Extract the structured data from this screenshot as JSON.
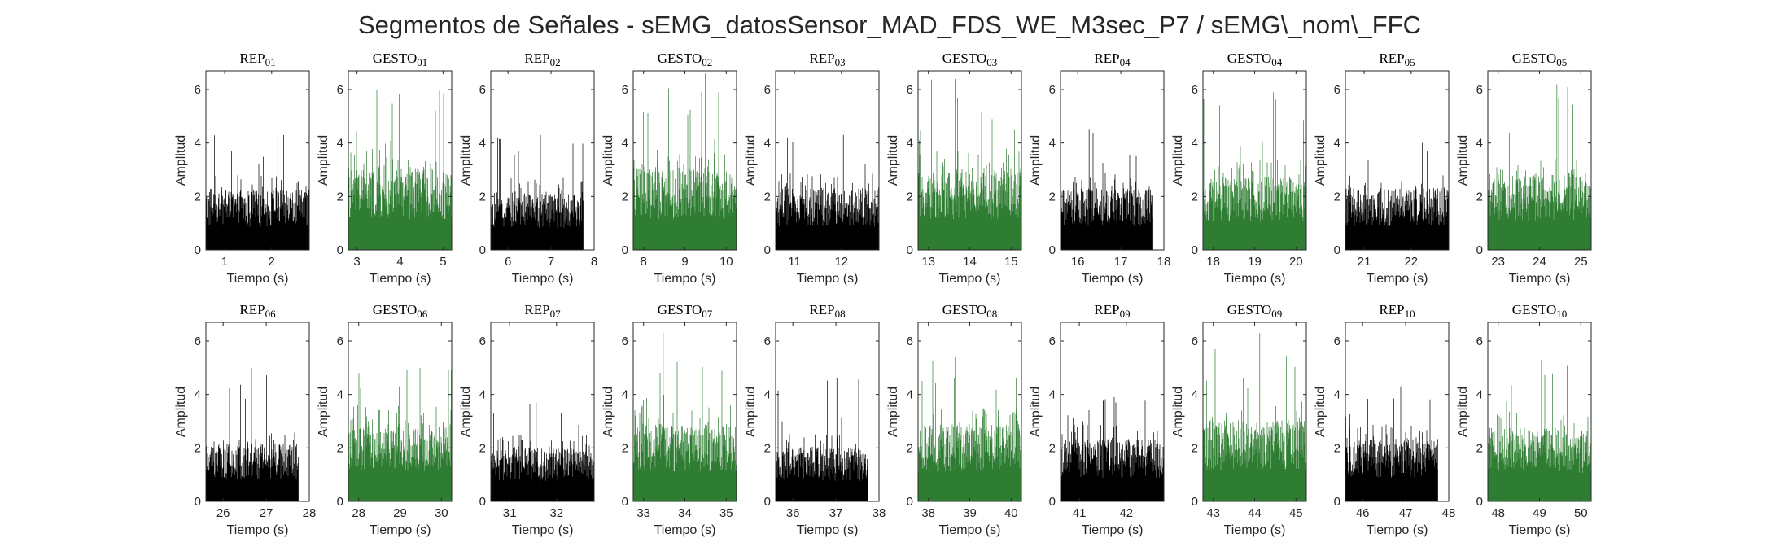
{
  "figure": {
    "title": "Segmentos de Señales - sEMG_datosSensor_MAD_FDS_WE_M3sec_P7 / sEMG\\_nom\\_FFC",
    "colors": {
      "rep": "#000000",
      "gesto": "#2e7d32",
      "axis": "#262626",
      "background": "#ffffff"
    }
  },
  "chart_data": [
    {
      "type": "bar",
      "title": "REP_01",
      "xlabel": "Tiempo (s)",
      "ylabel": "Amplitud",
      "xlim": [
        0.6,
        2.8
      ],
      "ylim": [
        0,
        6.7
      ],
      "xticks": [
        1,
        2
      ],
      "yticks": [
        0,
        2,
        4,
        6
      ],
      "signal_range": [
        0.6,
        2.8
      ],
      "series": [
        {
          "kind": "rep",
          "color": "#000000",
          "mean": 1.55,
          "max": 4.3
        }
      ]
    },
    {
      "type": "bar",
      "title": "GESTO_01",
      "xlabel": "Tiempo (s)",
      "ylabel": "Amplitud",
      "xlim": [
        2.8,
        5.2
      ],
      "ylim": [
        0,
        6.7
      ],
      "xticks": [
        3,
        4,
        5
      ],
      "yticks": [
        0,
        2,
        4,
        6
      ],
      "signal_range": [
        2.8,
        5.2
      ],
      "series": [
        {
          "kind": "gesto",
          "color": "#2e7d32",
          "mean": 2.1,
          "max": 6.0
        }
      ]
    },
    {
      "type": "bar",
      "title": "REP_02",
      "xlabel": "Tiempo (s)",
      "ylabel": "Amplitud",
      "xlim": [
        5.6,
        8.0
      ],
      "ylim": [
        0,
        6.7
      ],
      "xticks": [
        6,
        7,
        8
      ],
      "yticks": [
        0,
        2,
        4,
        6
      ],
      "signal_range": [
        5.6,
        7.75
      ],
      "series": [
        {
          "kind": "rep",
          "color": "#000000",
          "mean": 1.5,
          "max": 4.3
        }
      ]
    },
    {
      "type": "bar",
      "title": "GESTO_02",
      "xlabel": "Tiempo (s)",
      "ylabel": "Amplitud",
      "xlim": [
        7.75,
        10.25
      ],
      "ylim": [
        0,
        6.7
      ],
      "xticks": [
        8,
        9,
        10
      ],
      "yticks": [
        0,
        2,
        4,
        6
      ],
      "signal_range": [
        7.75,
        10.25
      ],
      "series": [
        {
          "kind": "gesto",
          "color": "#2e7d32",
          "mean": 2.1,
          "max": 6.6
        }
      ]
    },
    {
      "type": "bar",
      "title": "REP_03",
      "xlabel": "Tiempo (s)",
      "ylabel": "Amplitud",
      "xlim": [
        10.6,
        12.8
      ],
      "ylim": [
        0,
        6.7
      ],
      "xticks": [
        11,
        12
      ],
      "yticks": [
        0,
        2,
        4,
        6
      ],
      "signal_range": [
        10.6,
        12.8
      ],
      "series": [
        {
          "kind": "rep",
          "color": "#000000",
          "mean": 1.6,
          "max": 4.3
        }
      ]
    },
    {
      "type": "bar",
      "title": "GESTO_03",
      "xlabel": "Tiempo (s)",
      "ylabel": "Amplitud",
      "xlim": [
        12.75,
        15.25
      ],
      "ylim": [
        0,
        6.7
      ],
      "xticks": [
        13,
        14,
        15
      ],
      "yticks": [
        0,
        2,
        4,
        6
      ],
      "signal_range": [
        12.75,
        15.25
      ],
      "series": [
        {
          "kind": "gesto",
          "color": "#2e7d32",
          "mean": 2.1,
          "max": 6.4
        }
      ]
    },
    {
      "type": "bar",
      "title": "REP_04",
      "xlabel": "Tiempo (s)",
      "ylabel": "Amplitud",
      "xlim": [
        15.6,
        18.0
      ],
      "ylim": [
        0,
        6.7
      ],
      "xticks": [
        16,
        17,
        18
      ],
      "yticks": [
        0,
        2,
        4,
        6
      ],
      "signal_range": [
        15.6,
        17.75
      ],
      "series": [
        {
          "kind": "rep",
          "color": "#000000",
          "mean": 1.6,
          "max": 4.5
        }
      ]
    },
    {
      "type": "bar",
      "title": "GESTO_04",
      "xlabel": "Tiempo (s)",
      "ylabel": "Amplitud",
      "xlim": [
        17.75,
        20.25
      ],
      "ylim": [
        0,
        6.7
      ],
      "xticks": [
        18,
        19,
        20
      ],
      "yticks": [
        0,
        2,
        4,
        6
      ],
      "signal_range": [
        17.75,
        20.25
      ],
      "series": [
        {
          "kind": "gesto",
          "color": "#2e7d32",
          "mean": 1.9,
          "max": 5.9
        }
      ]
    },
    {
      "type": "bar",
      "title": "REP_05",
      "xlabel": "Tiempo (s)",
      "ylabel": "Amplitud",
      "xlim": [
        20.6,
        22.8
      ],
      "ylim": [
        0,
        6.7
      ],
      "xticks": [
        21,
        22
      ],
      "yticks": [
        0,
        2,
        4,
        6
      ],
      "signal_range": [
        20.6,
        22.8
      ],
      "series": [
        {
          "kind": "rep",
          "color": "#000000",
          "mean": 1.6,
          "max": 4.0
        }
      ]
    },
    {
      "type": "bar",
      "title": "GESTO_05",
      "xlabel": "Tiempo (s)",
      "ylabel": "Amplitud",
      "xlim": [
        22.75,
        25.25
      ],
      "ylim": [
        0,
        6.7
      ],
      "xticks": [
        23,
        24,
        25
      ],
      "yticks": [
        0,
        2,
        4,
        6
      ],
      "signal_range": [
        22.75,
        25.25
      ],
      "series": [
        {
          "kind": "gesto",
          "color": "#2e7d32",
          "mean": 2.0,
          "max": 6.2
        }
      ]
    },
    {
      "type": "bar",
      "title": "REP_06",
      "xlabel": "Tiempo (s)",
      "ylabel": "Amplitud",
      "xlim": [
        25.6,
        28.0
      ],
      "ylim": [
        0,
        6.7
      ],
      "xticks": [
        26,
        27,
        28
      ],
      "yticks": [
        0,
        2,
        4,
        6
      ],
      "signal_range": [
        25.6,
        27.75
      ],
      "series": [
        {
          "kind": "rep",
          "color": "#000000",
          "mean": 1.5,
          "max": 5.0
        }
      ]
    },
    {
      "type": "bar",
      "title": "GESTO_06",
      "xlabel": "Tiempo (s)",
      "ylabel": "Amplitud",
      "xlim": [
        27.75,
        30.25
      ],
      "ylim": [
        0,
        6.7
      ],
      "xticks": [
        28,
        29,
        30
      ],
      "yticks": [
        0,
        2,
        4,
        6
      ],
      "signal_range": [
        27.75,
        30.25
      ],
      "series": [
        {
          "kind": "gesto",
          "color": "#2e7d32",
          "mean": 2.0,
          "max": 5.0
        }
      ]
    },
    {
      "type": "bar",
      "title": "REP_07",
      "xlabel": "Tiempo (s)",
      "ylabel": "Amplitud",
      "xlim": [
        30.6,
        32.8
      ],
      "ylim": [
        0,
        6.7
      ],
      "xticks": [
        31,
        32
      ],
      "yticks": [
        0,
        2,
        4,
        6
      ],
      "signal_range": [
        30.6,
        32.8
      ],
      "series": [
        {
          "kind": "rep",
          "color": "#000000",
          "mean": 1.4,
          "max": 3.7
        }
      ]
    },
    {
      "type": "bar",
      "title": "GESTO_07",
      "xlabel": "Tiempo (s)",
      "ylabel": "Amplitud",
      "xlim": [
        32.75,
        35.25
      ],
      "ylim": [
        0,
        6.7
      ],
      "xticks": [
        33,
        34,
        35
      ],
      "yticks": [
        0,
        2,
        4,
        6
      ],
      "signal_range": [
        32.75,
        35.25
      ],
      "series": [
        {
          "kind": "gesto",
          "color": "#2e7d32",
          "mean": 2.0,
          "max": 6.3
        }
      ]
    },
    {
      "type": "bar",
      "title": "REP_08",
      "xlabel": "Tiempo (s)",
      "ylabel": "Amplitud",
      "xlim": [
        35.6,
        38.0
      ],
      "ylim": [
        0,
        6.7
      ],
      "xticks": [
        36,
        37,
        38
      ],
      "yticks": [
        0,
        2,
        4,
        6
      ],
      "signal_range": [
        35.6,
        37.75
      ],
      "series": [
        {
          "kind": "rep",
          "color": "#000000",
          "mean": 1.4,
          "max": 4.6
        }
      ]
    },
    {
      "type": "bar",
      "title": "GESTO_08",
      "xlabel": "Tiempo (s)",
      "ylabel": "Amplitud",
      "xlim": [
        37.75,
        40.25
      ],
      "ylim": [
        0,
        6.7
      ],
      "xticks": [
        38,
        39,
        40
      ],
      "yticks": [
        0,
        2,
        4,
        6
      ],
      "signal_range": [
        37.75,
        40.25
      ],
      "series": [
        {
          "kind": "gesto",
          "color": "#2e7d32",
          "mean": 2.0,
          "max": 5.4
        }
      ]
    },
    {
      "type": "bar",
      "title": "REP_09",
      "xlabel": "Tiempo (s)",
      "ylabel": "Amplitud",
      "xlim": [
        40.6,
        42.8
      ],
      "ylim": [
        0,
        6.7
      ],
      "xticks": [
        41,
        42
      ],
      "yticks": [
        0,
        2,
        4,
        6
      ],
      "signal_range": [
        40.6,
        42.8
      ],
      "series": [
        {
          "kind": "rep",
          "color": "#000000",
          "mean": 1.6,
          "max": 3.9
        }
      ]
    },
    {
      "type": "bar",
      "title": "GESTO_09",
      "xlabel": "Tiempo (s)",
      "ylabel": "Amplitud",
      "xlim": [
        42.75,
        45.25
      ],
      "ylim": [
        0,
        6.7
      ],
      "xticks": [
        43,
        44,
        45
      ],
      "yticks": [
        0,
        2,
        4,
        6
      ],
      "signal_range": [
        42.75,
        45.25
      ],
      "series": [
        {
          "kind": "gesto",
          "color": "#2e7d32",
          "mean": 2.1,
          "max": 6.3
        }
      ]
    },
    {
      "type": "bar",
      "title": "REP_10",
      "xlabel": "Tiempo (s)",
      "ylabel": "Amplitud",
      "xlim": [
        45.6,
        48.0
      ],
      "ylim": [
        0,
        6.7
      ],
      "xticks": [
        46,
        47,
        48
      ],
      "yticks": [
        0,
        2,
        4,
        6
      ],
      "signal_range": [
        45.6,
        47.75
      ],
      "series": [
        {
          "kind": "rep",
          "color": "#000000",
          "mean": 1.6,
          "max": 4.3
        }
      ]
    },
    {
      "type": "bar",
      "title": "GESTO_10",
      "xlabel": "Tiempo (s)",
      "ylabel": "Amplitud",
      "xlim": [
        47.75,
        50.25
      ],
      "ylim": [
        0,
        6.7
      ],
      "xticks": [
        48,
        49,
        50
      ],
      "yticks": [
        0,
        2,
        4,
        6
      ],
      "signal_range": [
        47.75,
        50.25
      ],
      "series": [
        {
          "kind": "gesto",
          "color": "#2e7d32",
          "mean": 1.9,
          "max": 5.3
        }
      ]
    }
  ]
}
